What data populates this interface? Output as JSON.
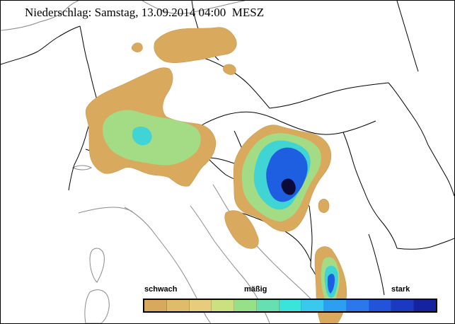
{
  "title": "Niederschlag: Samstag, 13.09.2014 04:00  MESZ",
  "legend": {
    "weak_label": "schwach",
    "moderate_label": "mäßig",
    "strong_label": "stark",
    "colors": [
      "#d7a95c",
      "#e0bb6a",
      "#e6cd7c",
      "#cbe07e",
      "#97e08a",
      "#66e0b0",
      "#3ae4dc",
      "#39c8ee",
      "#2d9ff0",
      "#2a78ec",
      "#2353da",
      "#1a3ac2",
      "#14249f"
    ]
  },
  "colors": {
    "border_line": "#000000",
    "coast_line": "#7a7a7a",
    "precip_weak": "#d9aa5e",
    "precip_light": "#a3dc85",
    "precip_moderate": "#41d4d4",
    "precip_heavy": "#1e5ee0",
    "precip_extreme": "#0b0b3a"
  }
}
